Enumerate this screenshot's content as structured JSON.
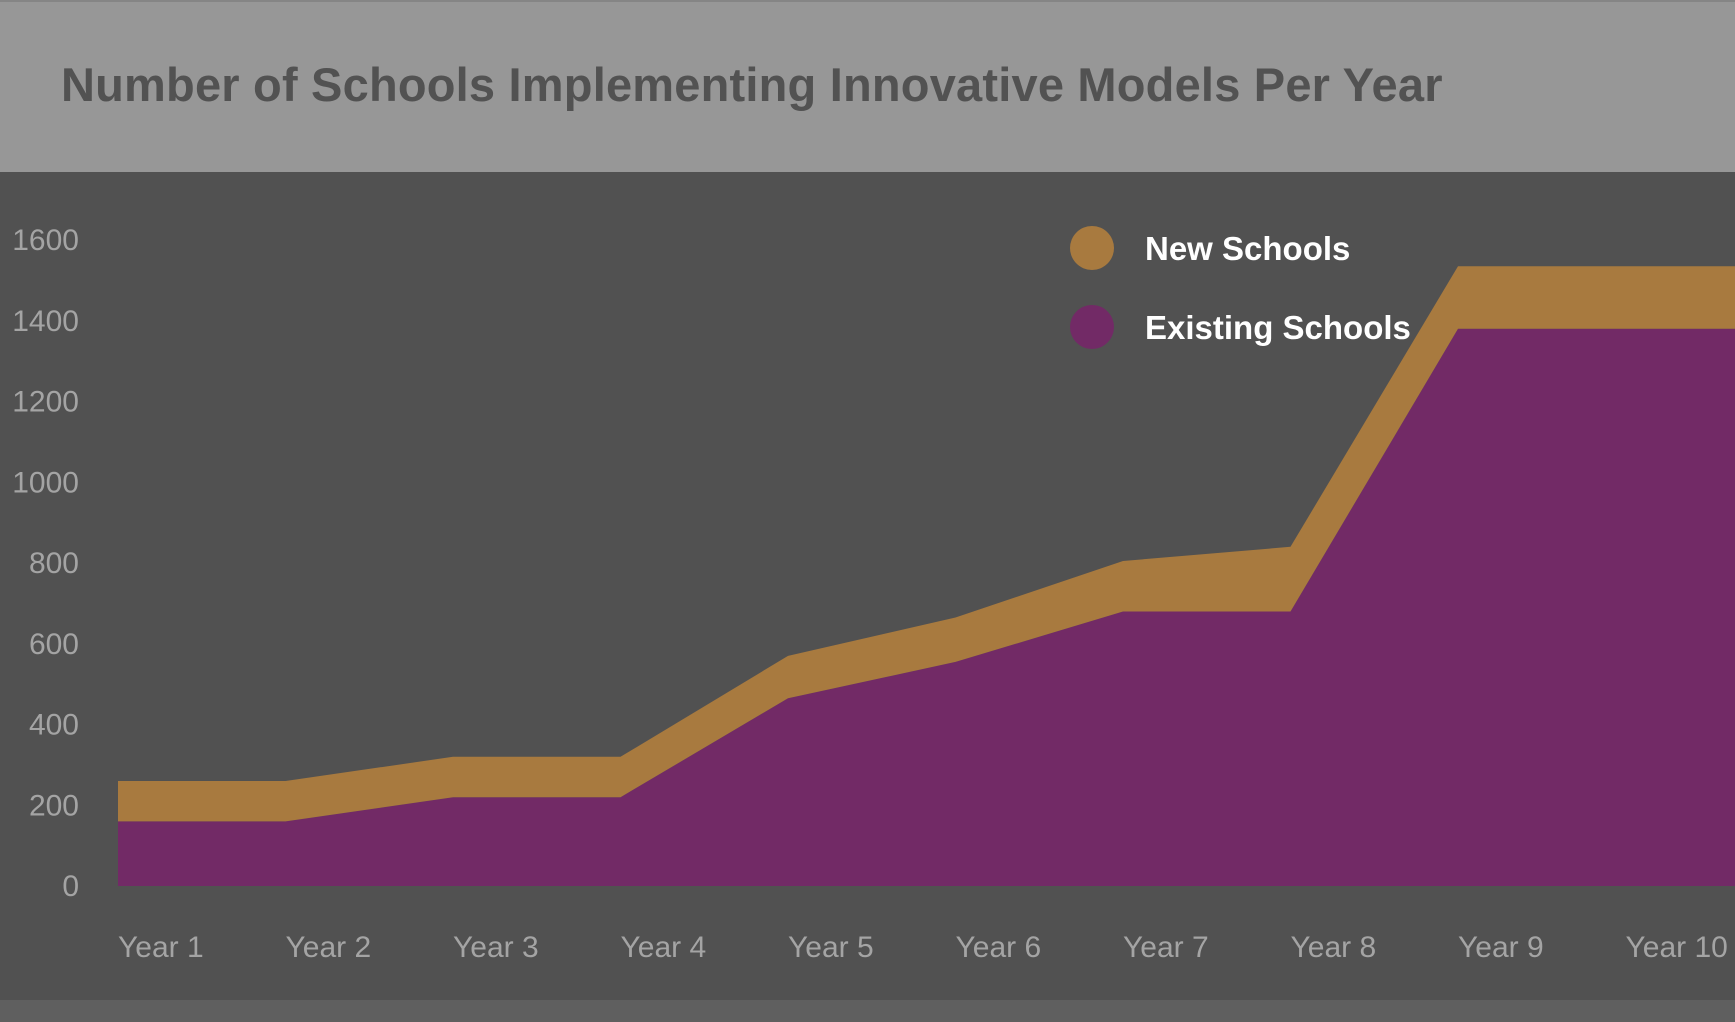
{
  "header": {
    "title": "Number of Schools Implementing Innovative Models Per Year"
  },
  "chart_data": {
    "type": "area",
    "stacked": true,
    "title": "Number of Schools Implementing Innovative Models Per Year",
    "xlabel": "",
    "ylabel": "",
    "categories": [
      "Year 1",
      "Year 2",
      "Year 3",
      "Year 4",
      "Year 5",
      "Year 6",
      "Year 7",
      "Year 8",
      "Year 9",
      "Year 10"
    ],
    "series": [
      {
        "name": "Existing Schools",
        "color": "#722a66",
        "values": [
          160,
          160,
          220,
          220,
          465,
          555,
          680,
          680,
          1380,
          1380
        ]
      },
      {
        "name": "New Schools",
        "color": "#a87a3f",
        "values": [
          100,
          100,
          100,
          100,
          105,
          110,
          125,
          160,
          155,
          155
        ]
      }
    ],
    "yticks": [
      "0",
      "200",
      "400",
      "600",
      "800",
      "1000",
      "1200",
      "1400",
      "1600"
    ],
    "ylim": [
      0,
      1600
    ],
    "grid": false,
    "legend": {
      "position": "top-right",
      "items": [
        {
          "label": "New Schools",
          "color": "#a87a3f"
        },
        {
          "label": "Existing Schools",
          "color": "#722a66"
        }
      ]
    }
  }
}
